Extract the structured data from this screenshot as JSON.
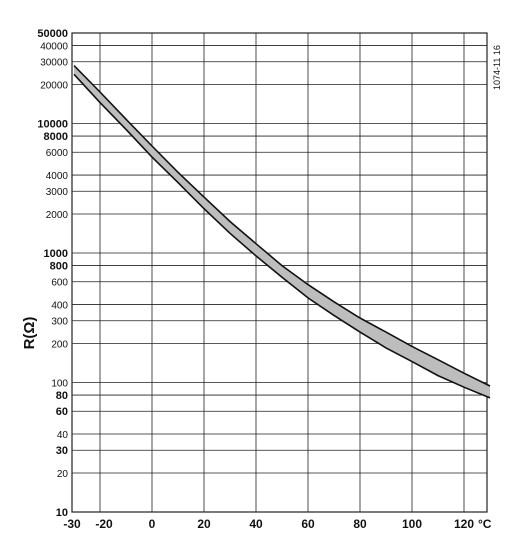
{
  "chart_data": {
    "type": "line",
    "title": "",
    "xlabel": "°C",
    "ylabel": "R(Ω)",
    "annotation": "1074-11 16",
    "xscale": "linear",
    "yscale": "log",
    "xlim": [
      -30,
      130
    ],
    "ylim": [
      10,
      50000
    ],
    "grid": true,
    "x_tick_labels": [
      "-30",
      "-20",
      "0",
      "20",
      "40",
      "60",
      "80",
      "100",
      "120"
    ],
    "x_tick_values": [
      -30,
      -20,
      0,
      20,
      40,
      60,
      80,
      100,
      120
    ],
    "y_ticks": [
      {
        "value": 10,
        "label": "10",
        "bold": true
      },
      {
        "value": 20,
        "label": "20",
        "bold": false
      },
      {
        "value": 30,
        "label": "30",
        "bold": true
      },
      {
        "value": 40,
        "label": "40",
        "bold": false
      },
      {
        "value": 60,
        "label": "60",
        "bold": true
      },
      {
        "value": 80,
        "label": "80",
        "bold": true
      },
      {
        "value": 100,
        "label": "100",
        "bold": false
      },
      {
        "value": 200,
        "label": "200",
        "bold": false
      },
      {
        "value": 300,
        "label": "300",
        "bold": false
      },
      {
        "value": 400,
        "label": "400",
        "bold": false
      },
      {
        "value": 600,
        "label": "600",
        "bold": false
      },
      {
        "value": 800,
        "label": "800",
        "bold": true
      },
      {
        "value": 1000,
        "label": "1000",
        "bold": true
      },
      {
        "value": 2000,
        "label": "2000",
        "bold": false
      },
      {
        "value": 3000,
        "label": "3000",
        "bold": false
      },
      {
        "value": 4000,
        "label": "4000",
        "bold": false
      },
      {
        "value": 6000,
        "label": "6000",
        "bold": false
      },
      {
        "value": 8000,
        "label": "8000",
        "bold": true
      },
      {
        "value": 10000,
        "label": "10000",
        "bold": true
      },
      {
        "value": 20000,
        "label": "20000",
        "bold": false
      },
      {
        "value": 30000,
        "label": "30000",
        "bold": false
      },
      {
        "value": 40000,
        "label": "40000",
        "bold": false
      },
      {
        "value": 50000,
        "label": "50000",
        "bold": true
      }
    ],
    "series": [
      {
        "x": [
          -30,
          -20,
          -10,
          0,
          10,
          20,
          30,
          40,
          50,
          60,
          70,
          80,
          90,
          100,
          110,
          120,
          130
        ],
        "y": [
          28000,
          17500,
          10800,
          6700,
          4200,
          2700,
          1750,
          1180,
          800,
          570,
          420,
          315,
          245,
          190,
          150,
          118,
          94
        ]
      },
      {
        "x": [
          -30,
          -20,
          -10,
          0,
          10,
          20,
          30,
          40,
          50,
          60,
          70,
          80,
          90,
          100,
          110,
          120,
          130
        ],
        "y": [
          24000,
          14500,
          9000,
          5500,
          3500,
          2200,
          1420,
          950,
          650,
          450,
          330,
          245,
          185,
          145,
          113,
          92,
          76
        ]
      }
    ]
  }
}
